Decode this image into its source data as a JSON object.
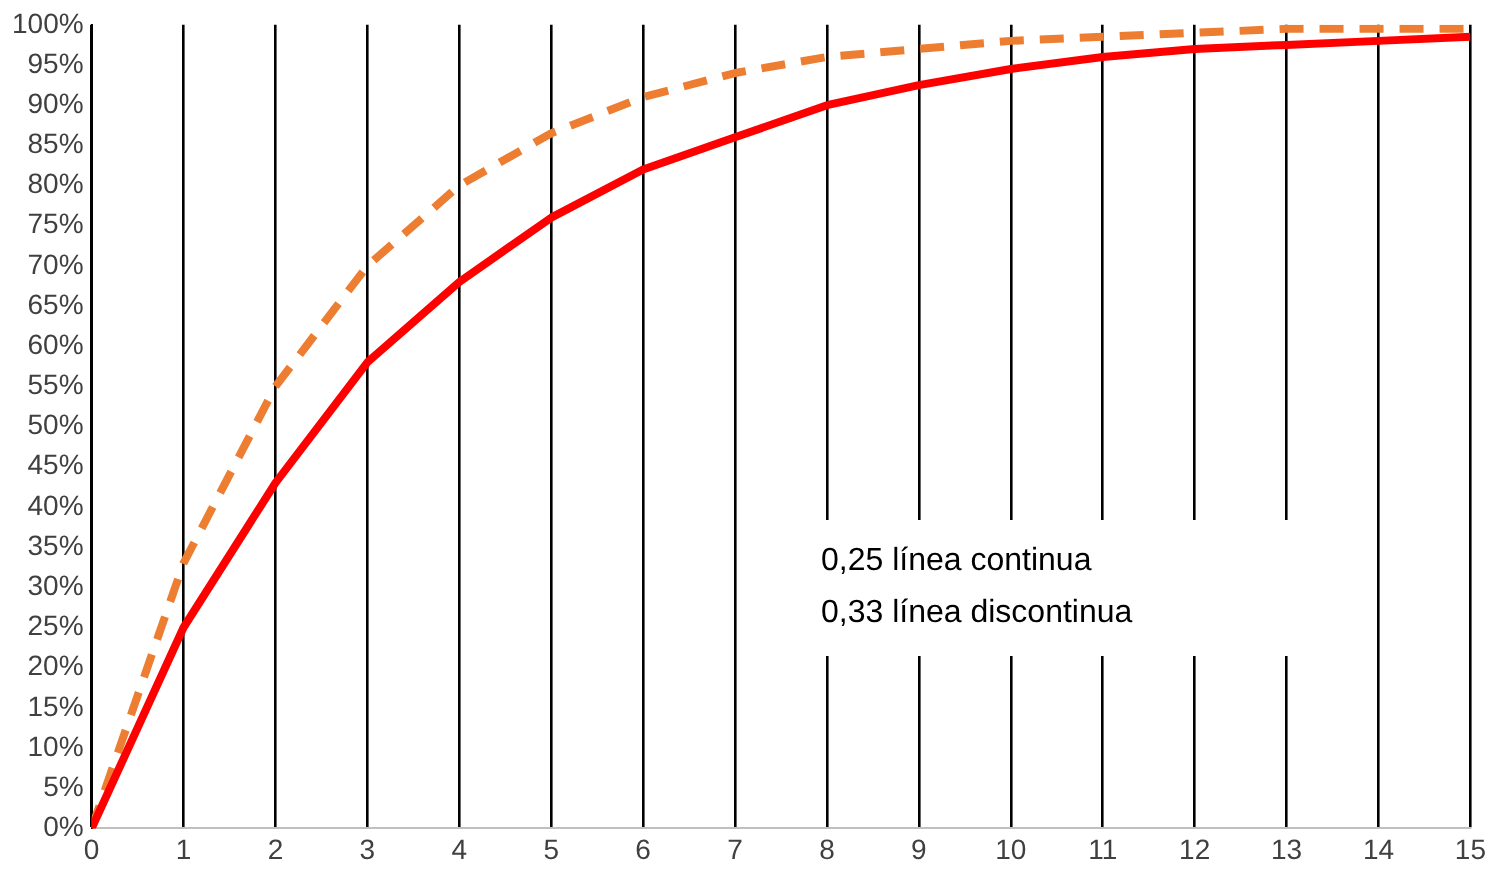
{
  "chart_data": {
    "type": "line",
    "x": [
      0,
      1,
      2,
      3,
      4,
      5,
      6,
      7,
      8,
      9,
      10,
      11,
      12,
      13,
      14,
      15
    ],
    "series": [
      {
        "color": "#ff0000",
        "line_style": "solid",
        "values": [
          0,
          25,
          43,
          58,
          68,
          76,
          82,
          86,
          90,
          92.5,
          94.5,
          96,
          97,
          97.5,
          98,
          98.5
        ]
      },
      {
        "color": "#ed7d31",
        "line_style": "dashed",
        "values": [
          0,
          33,
          55,
          70,
          80,
          86.5,
          91,
          94,
          96,
          97,
          98,
          98.5,
          99,
          99.5,
          99.5,
          99.5
        ]
      }
    ],
    "xlim": [
      0,
      15
    ],
    "xticks": [
      0,
      1,
      2,
      3,
      4,
      5,
      6,
      7,
      8,
      9,
      10,
      11,
      12,
      13,
      14,
      15
    ],
    "ylim": [
      0,
      100
    ],
    "yticks": [
      {
        "value": 0,
        "label": "0%"
      },
      {
        "value": 5,
        "label": "5%"
      },
      {
        "value": 10,
        "label": "10%"
      },
      {
        "value": 15,
        "label": "15%"
      },
      {
        "value": 20,
        "label": "20%"
      },
      {
        "value": 25,
        "label": "25%"
      },
      {
        "value": 30,
        "label": "30%"
      },
      {
        "value": 35,
        "label": "35%"
      },
      {
        "value": 40,
        "label": "40%"
      },
      {
        "value": 45,
        "label": "45%"
      },
      {
        "value": 50,
        "label": "50%"
      },
      {
        "value": 55,
        "label": "55%"
      },
      {
        "value": 60,
        "label": "60%"
      },
      {
        "value": 65,
        "label": "65%"
      },
      {
        "value": 70,
        "label": "70%"
      },
      {
        "value": 75,
        "label": "75%"
      },
      {
        "value": 80,
        "label": "80%"
      },
      {
        "value": 85,
        "label": "85%"
      },
      {
        "value": 90,
        "label": "90%"
      },
      {
        "value": 95,
        "label": "95%"
      },
      {
        "value": 100,
        "label": "100%"
      }
    ],
    "grid": "x",
    "legend": false,
    "marker": "none",
    "annotations": [
      "0,25 línea continua",
      "0,33 línea discontinua"
    ]
  }
}
